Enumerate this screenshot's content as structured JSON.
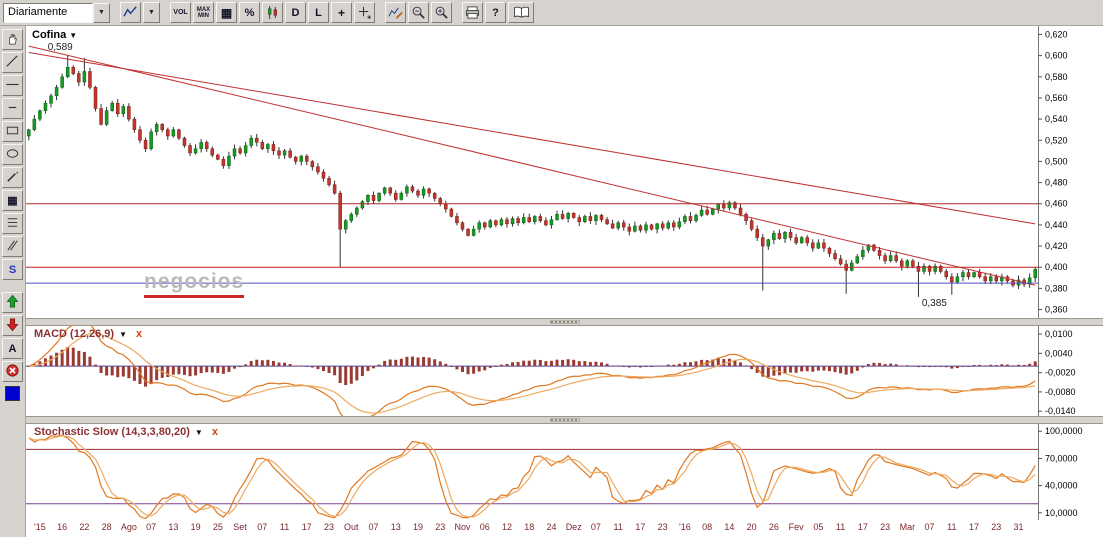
{
  "glyphs": {
    "caret_down": "▼",
    "grid": "▦",
    "plus": "+"
  },
  "toolbar": {
    "interval_value": "Diariamente",
    "vol_label": "VOL",
    "max_label": "MAX",
    "min_label": "MIN",
    "percent_label": "%",
    "d_label": "D",
    "l_label": "L",
    "help_label": "?"
  },
  "side_toolbar": {
    "s_label": "S",
    "a_label": "A"
  },
  "panes": {
    "price": {
      "symbol": "Cofina",
      "peak_label": "0,589",
      "low_label": "0,385",
      "watermark": "negocios"
    },
    "macd": {
      "label": "MACD (12,26,9)",
      "close_label": "x"
    },
    "stochastic": {
      "label": "Stochastic Slow (14,3,3,80,20)",
      "close_label": "x"
    }
  },
  "icons": {
    "chart-type-icon": "zigzag-line",
    "grid-icon": "dotted-grid",
    "candlestick-icon": "two-candles",
    "crosshair-icon": "plus",
    "crosshair-add-icon": "plus-with-small-plus",
    "study-edit-icon": "zigzag-with-pencil",
    "zoom-out-icon": "magnifier-minus",
    "zoom-in-icon": "magnifier-plus",
    "print-icon": "printer",
    "manual-icon": "open-book",
    "pan-hand-icon": "hand",
    "trendline-icon": "diagonal-line",
    "horizontal-line-icon": "horizontal-line",
    "segment-icon": "short-horizontal-line",
    "rectangle-icon": "rectangle",
    "ellipse-icon": "ellipse",
    "pencil-icon": "pencil-stroke",
    "pattern-icon": "dotted-grid",
    "fibonacci-icon": "stacked-lines",
    "parallel-lines-icon": "double-diagonal",
    "arrow-up-icon": "green-up-arrow",
    "arrow-down-icon": "red-down-arrow",
    "delete-icon": "red-circle-white-x",
    "color-swatch-icon": "blue-square"
  },
  "chart_data": {
    "type": "candlestick",
    "title": "Cofina",
    "interval": "Diariamente",
    "n_bars": 182,
    "price": {
      "ylim": [
        0.352,
        0.628
      ],
      "tick_values": [
        0.62,
        0.6,
        0.58,
        0.56,
        0.54,
        0.52,
        0.5,
        0.48,
        0.46,
        0.44,
        0.42,
        0.4,
        0.38,
        0.36
      ],
      "tick_labels": [
        "0,620",
        "0,600",
        "0,580",
        "0,560",
        "0,540",
        "0,520",
        "0,500",
        "0,480",
        "0,460",
        "0,440",
        "0,420",
        "0,400",
        "0,380",
        "0,360"
      ],
      "closes": [
        0.53,
        0.54,
        0.548,
        0.555,
        0.562,
        0.57,
        0.58,
        0.589,
        0.583,
        0.575,
        0.585,
        0.57,
        0.55,
        0.535,
        0.548,
        0.555,
        0.545,
        0.552,
        0.54,
        0.53,
        0.52,
        0.512,
        0.528,
        0.535,
        0.53,
        0.524,
        0.53,
        0.522,
        0.515,
        0.508,
        0.512,
        0.518,
        0.512,
        0.506,
        0.502,
        0.496,
        0.505,
        0.512,
        0.508,
        0.515,
        0.522,
        0.518,
        0.512,
        0.516,
        0.51,
        0.506,
        0.51,
        0.504,
        0.5,
        0.505,
        0.5,
        0.495,
        0.49,
        0.484,
        0.478,
        0.47,
        0.436,
        0.444,
        0.45,
        0.456,
        0.462,
        0.468,
        0.463,
        0.47,
        0.475,
        0.47,
        0.464,
        0.47,
        0.476,
        0.472,
        0.468,
        0.474,
        0.47,
        0.465,
        0.46,
        0.455,
        0.448,
        0.442,
        0.436,
        0.43,
        0.436,
        0.442,
        0.438,
        0.444,
        0.44,
        0.445,
        0.441,
        0.446,
        0.442,
        0.447,
        0.443,
        0.448,
        0.444,
        0.44,
        0.445,
        0.45,
        0.446,
        0.451,
        0.447,
        0.443,
        0.448,
        0.444,
        0.449,
        0.445,
        0.441,
        0.437,
        0.442,
        0.438,
        0.434,
        0.439,
        0.435,
        0.44,
        0.436,
        0.441,
        0.437,
        0.442,
        0.438,
        0.443,
        0.448,
        0.444,
        0.449,
        0.454,
        0.45,
        0.455,
        0.46,
        0.456,
        0.461,
        0.456,
        0.45,
        0.444,
        0.436,
        0.428,
        0.42,
        0.426,
        0.432,
        0.427,
        0.433,
        0.428,
        0.423,
        0.428,
        0.423,
        0.418,
        0.423,
        0.418,
        0.413,
        0.408,
        0.403,
        0.397,
        0.404,
        0.41,
        0.416,
        0.421,
        0.416,
        0.411,
        0.406,
        0.411,
        0.406,
        0.401,
        0.406,
        0.401,
        0.396,
        0.401,
        0.396,
        0.401,
        0.396,
        0.391,
        0.386,
        0.391,
        0.395,
        0.391,
        0.395,
        0.391,
        0.387,
        0.391,
        0.387,
        0.391,
        0.387,
        0.383,
        0.388,
        0.384,
        0.39,
        0.398
      ],
      "wick_low_overrides": {
        "56": 0.4,
        "132": 0.378,
        "147": 0.375,
        "160": 0.372,
        "166": 0.374
      },
      "wick_high_overrides": {
        "7": 0.6,
        "10": 0.598
      },
      "up_color": "#169a24",
      "down_color": "#c2362e",
      "wick_color": "#333333",
      "overlay_lines": [
        {
          "kind": "trend",
          "color": "#c03030",
          "from_bar": 0,
          "from_value": 0.609,
          "to_bar": 181,
          "to_value": 0.383
        },
        {
          "kind": "trend",
          "color": "#c03030",
          "from_bar": 0,
          "from_value": 0.603,
          "to_bar": 181,
          "to_value": 0.441
        },
        {
          "kind": "hline",
          "color": "#b02828",
          "value": 0.46
        },
        {
          "kind": "hline",
          "color": "#c22525",
          "value": 0.4
        },
        {
          "kind": "hline",
          "color": "#5252c8",
          "value": 0.385
        }
      ],
      "annotations": [
        {
          "text": "0,589",
          "bar": 7,
          "value": 0.6,
          "placement": "above"
        },
        {
          "text": "0,385",
          "bar": 166,
          "value": 0.374,
          "placement": "below"
        }
      ]
    },
    "macd": {
      "params": [
        12,
        26,
        9
      ],
      "ylim": [
        -0.0155,
        0.0125
      ],
      "tick_values": [
        0.01,
        0.004,
        -0.002,
        -0.008,
        -0.014
      ],
      "tick_labels": [
        "0,0100",
        "0,0040",
        "-0,0020",
        "-0,0080",
        "-0,0140"
      ],
      "zero_line_color": "#4444bb",
      "hist_color": "#9a3b33",
      "line_colors": [
        "#e07820",
        "#edaa60"
      ]
    },
    "stochastic": {
      "params": [
        14,
        3,
        3,
        80,
        20
      ],
      "ylim": [
        2,
        108
      ],
      "tick_values": [
        100,
        70,
        40,
        10
      ],
      "tick_labels": [
        "100,0000",
        "70,0000",
        "40,0000",
        "10,0000"
      ],
      "ref_lines": [
        {
          "value": 80,
          "color": "#a03038"
        },
        {
          "value": 20,
          "color": "#7a4090"
        }
      ],
      "line_colors": [
        "#e07820",
        "#edaa60"
      ]
    },
    "x_labels": {
      "indices": [
        2,
        6,
        10,
        14,
        18,
        22,
        26,
        30,
        34,
        38,
        42,
        46,
        50,
        54,
        58,
        62,
        66,
        70,
        74,
        78,
        82,
        86,
        90,
        94,
        98,
        102,
        106,
        110,
        114,
        118,
        122,
        126,
        130,
        134,
        138,
        142,
        146,
        150,
        154,
        158,
        162,
        166,
        170,
        174,
        178
      ],
      "labels": [
        "'15",
        "16",
        "22",
        "28",
        "Ago",
        "07",
        "13",
        "19",
        "25",
        "Set",
        "07",
        "11",
        "17",
        "23",
        "Out",
        "07",
        "13",
        "19",
        "23",
        "Nov",
        "06",
        "12",
        "18",
        "24",
        "Dez",
        "07",
        "11",
        "17",
        "23",
        "'16",
        "08",
        "14",
        "20",
        "26",
        "Fev",
        "05",
        "11",
        "17",
        "23",
        "Mar",
        "07",
        "11",
        "17",
        "23",
        "31"
      ]
    }
  }
}
